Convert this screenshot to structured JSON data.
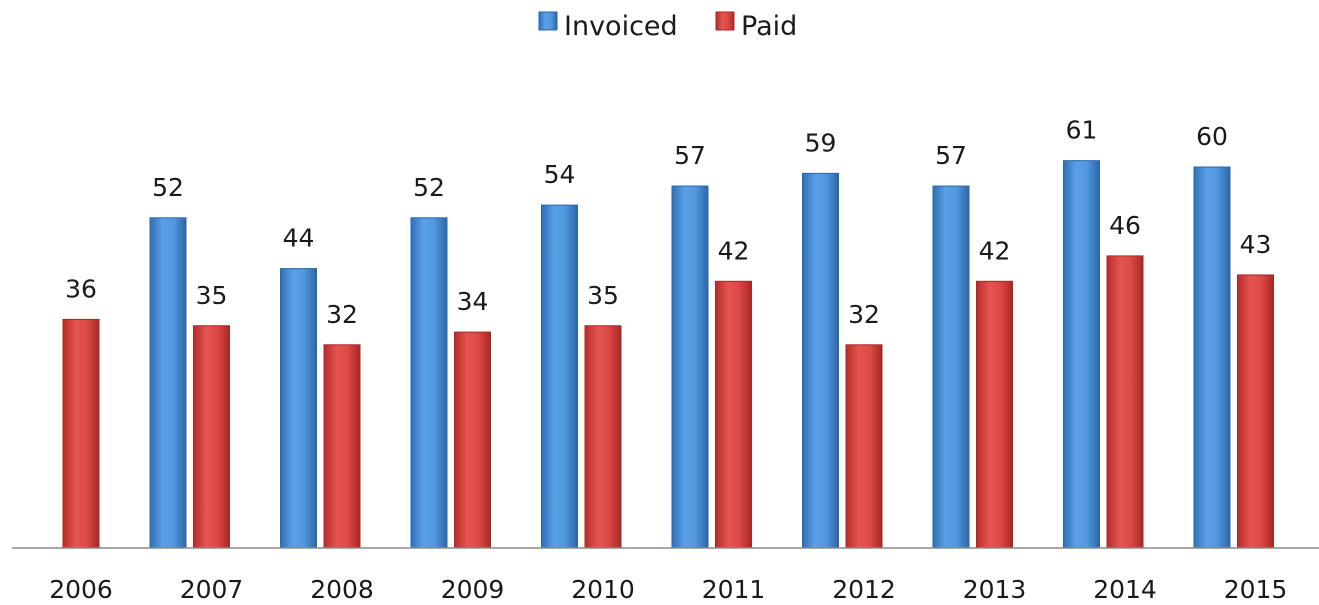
{
  "chart_data": {
    "type": "bar",
    "title": "",
    "xlabel": "",
    "ylabel": "",
    "categories": [
      "2006",
      "2007",
      "2008",
      "2009",
      "2010",
      "2011",
      "2012",
      "2013",
      "2014",
      "2015"
    ],
    "series": [
      {
        "name": "Invoiced",
        "color": "#4a8fd6",
        "values": [
          null,
          52,
          44,
          52,
          54,
          57,
          59,
          57,
          61,
          60
        ]
      },
      {
        "name": "Paid",
        "color": "#d9423e",
        "values": [
          36,
          35,
          32,
          34,
          35,
          42,
          32,
          42,
          46,
          43
        ]
      }
    ],
    "ylim": [
      0,
      70
    ],
    "grid": false,
    "legend_position": "top-center",
    "data_labels": true
  }
}
